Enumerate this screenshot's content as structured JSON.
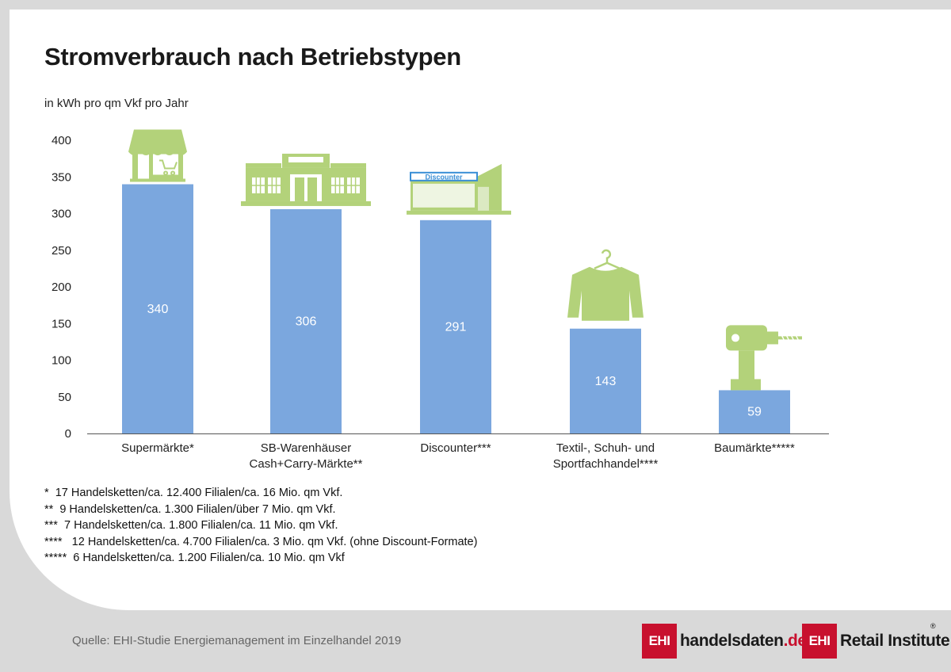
{
  "title": "Stromverbrauch nach Betriebstypen",
  "unit_label": "in kWh pro qm Vkf pro Jahr",
  "chart_data": {
    "type": "bar",
    "categories": [
      [
        "Supermärkte*"
      ],
      [
        "SB-Warenhäuser",
        "Cash+Carry-Märkte**"
      ],
      [
        "Discounter***"
      ],
      [
        "Textil-, Schuh- und",
        "Sportfachhandel****"
      ],
      [
        "Baumärkte*****"
      ]
    ],
    "values": [
      340,
      306,
      291,
      143,
      59
    ],
    "ylim": [
      0,
      400
    ],
    "yticks": [
      0,
      50,
      100,
      150,
      200,
      250,
      300,
      350,
      400
    ],
    "grid": false,
    "bar_color": "#7ba7de",
    "icon_color": "#b3d27a",
    "icons": [
      "shop-awning-icon",
      "department-store-icon",
      "discounter-store-icon",
      "sweater-on-hanger-icon",
      "power-drill-icon"
    ],
    "store_sign_text": "Discounter"
  },
  "footnotes": [
    "*  17 Handelsketten/ca. 12.400 Filialen/ca. 16 Mio. qm Vkf.",
    "**  9 Handelsketten/ca. 1.300 Filialen/über 7 Mio. qm Vkf.",
    "***  7 Handelsketten/ca. 1.800 Filialen/ca. 11 Mio. qm Vkf.",
    "****   12 Handelsketten/ca. 4.700 Filialen/ca. 3 Mio. qm Vkf. (ohne Discount-Formate)",
    "*****  6 Handelsketten/ca. 1.200 Filialen/ca. 10 Mio. qm Vkf"
  ],
  "source": "Quelle: EHI-Studie Energiemanagement im Einzelhandel 2019",
  "logos": {
    "box_text": "EHI",
    "brand1_main": "handelsdaten",
    "brand1_tld": ".de",
    "brand2": "Retail Institute",
    "registered": "®",
    "brand_color": "#c8102e"
  }
}
